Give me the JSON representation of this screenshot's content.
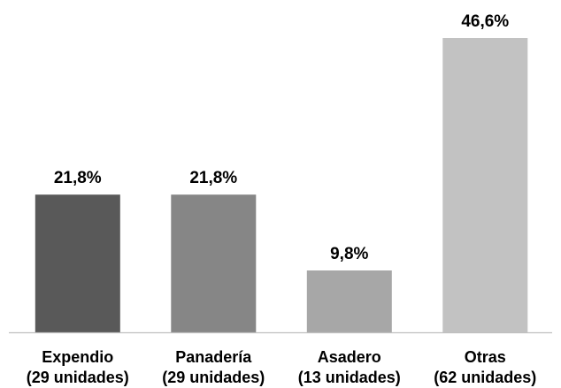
{
  "chart_data": {
    "type": "bar",
    "title": "",
    "xlabel": "",
    "ylabel": "",
    "ylim": [
      0,
      46.6
    ],
    "grid": false,
    "categories": [
      {
        "line1": "Expendio",
        "line2": "(29 unidades)"
      },
      {
        "line1": "Panadería",
        "line2": "(29 unidades)"
      },
      {
        "line1": "Asadero",
        "line2": "(13 unidades)"
      },
      {
        "line1": "Otras",
        "line2": "(62 unidades)"
      }
    ],
    "values": [
      21.8,
      21.8,
      9.8,
      46.6
    ],
    "value_labels": [
      "21,8%",
      "21,8%",
      "9,8%",
      "46,6%"
    ],
    "colors": [
      "#595959",
      "#868686",
      "#a7a7a7",
      "#c2c2c2"
    ]
  }
}
